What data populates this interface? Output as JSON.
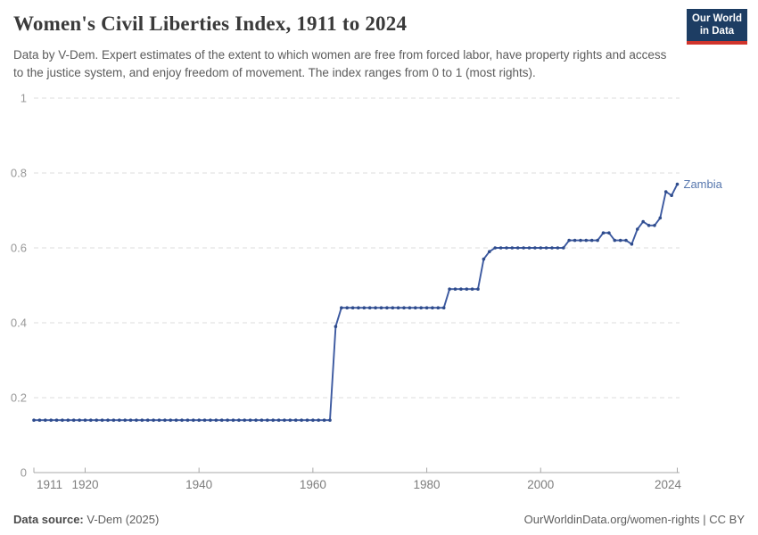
{
  "header": {
    "title": "Women's Civil Liberties Index, 1911 to 2024",
    "subtitle": "Data by V-Dem. Expert estimates of the extent to which women are free from forced labor, have property rights and access to the justice system, and enjoy freedom of movement. The index ranges from 0 to 1 (most rights).",
    "logo": {
      "line1": "Our World",
      "line2": "in Data"
    }
  },
  "colors": {
    "line": "#3c59a0",
    "marker": "#2f4c8c",
    "entity_label": "#5777ae",
    "gridline": "#dcdcdc",
    "axis": "#a8a8a8",
    "y_tick_label": "#989898",
    "x_tick_label": "#7d7d7d",
    "logo_bg": "#1d3d63",
    "logo_stripe": "#d0342c"
  },
  "chart_data": {
    "type": "line",
    "title": "Women's Civil Liberties Index, 1911 to 2024",
    "xlabel": "",
    "ylabel": "",
    "xlim": [
      1911,
      2024
    ],
    "ylim": [
      0,
      1
    ],
    "x_ticks": [
      1911,
      1920,
      1940,
      1960,
      1980,
      2000,
      2024
    ],
    "y_ticks": [
      0,
      0.2,
      0.4,
      0.6,
      0.8,
      1
    ],
    "grid": "horizontal-dashed",
    "legend_position": "end-of-line-label",
    "series": [
      {
        "name": "Zambia",
        "x": [
          1911,
          1912,
          1913,
          1914,
          1915,
          1916,
          1917,
          1918,
          1919,
          1920,
          1921,
          1922,
          1923,
          1924,
          1925,
          1926,
          1927,
          1928,
          1929,
          1930,
          1931,
          1932,
          1933,
          1934,
          1935,
          1936,
          1937,
          1938,
          1939,
          1940,
          1941,
          1942,
          1943,
          1944,
          1945,
          1946,
          1947,
          1948,
          1949,
          1950,
          1951,
          1952,
          1953,
          1954,
          1955,
          1956,
          1957,
          1958,
          1959,
          1960,
          1961,
          1962,
          1963,
          1964,
          1965,
          1966,
          1967,
          1968,
          1969,
          1970,
          1971,
          1972,
          1973,
          1974,
          1975,
          1976,
          1977,
          1978,
          1979,
          1980,
          1981,
          1982,
          1983,
          1984,
          1985,
          1986,
          1987,
          1988,
          1989,
          1990,
          1991,
          1992,
          1993,
          1994,
          1995,
          1996,
          1997,
          1998,
          1999,
          2000,
          2001,
          2002,
          2003,
          2004,
          2005,
          2006,
          2007,
          2008,
          2009,
          2010,
          2011,
          2012,
          2013,
          2014,
          2015,
          2016,
          2017,
          2018,
          2019,
          2020,
          2021,
          2022,
          2023,
          2024
        ],
        "values": [
          0.14,
          0.14,
          0.14,
          0.14,
          0.14,
          0.14,
          0.14,
          0.14,
          0.14,
          0.14,
          0.14,
          0.14,
          0.14,
          0.14,
          0.14,
          0.14,
          0.14,
          0.14,
          0.14,
          0.14,
          0.14,
          0.14,
          0.14,
          0.14,
          0.14,
          0.14,
          0.14,
          0.14,
          0.14,
          0.14,
          0.14,
          0.14,
          0.14,
          0.14,
          0.14,
          0.14,
          0.14,
          0.14,
          0.14,
          0.14,
          0.14,
          0.14,
          0.14,
          0.14,
          0.14,
          0.14,
          0.14,
          0.14,
          0.14,
          0.14,
          0.14,
          0.14,
          0.14,
          0.39,
          0.44,
          0.44,
          0.44,
          0.44,
          0.44,
          0.44,
          0.44,
          0.44,
          0.44,
          0.44,
          0.44,
          0.44,
          0.44,
          0.44,
          0.44,
          0.44,
          0.44,
          0.44,
          0.44,
          0.49,
          0.49,
          0.49,
          0.49,
          0.49,
          0.49,
          0.57,
          0.59,
          0.6,
          0.6,
          0.6,
          0.6,
          0.6,
          0.6,
          0.6,
          0.6,
          0.6,
          0.6,
          0.6,
          0.6,
          0.6,
          0.62,
          0.62,
          0.62,
          0.62,
          0.62,
          0.62,
          0.64,
          0.64,
          0.62,
          0.62,
          0.62,
          0.61,
          0.65,
          0.67,
          0.66,
          0.66,
          0.68,
          0.75,
          0.74,
          0.77
        ]
      }
    ]
  },
  "footer": {
    "source_label": "Data source:",
    "source_value": " V-Dem (2025)",
    "credit": "OurWorldinData.org/women-rights | CC BY"
  }
}
